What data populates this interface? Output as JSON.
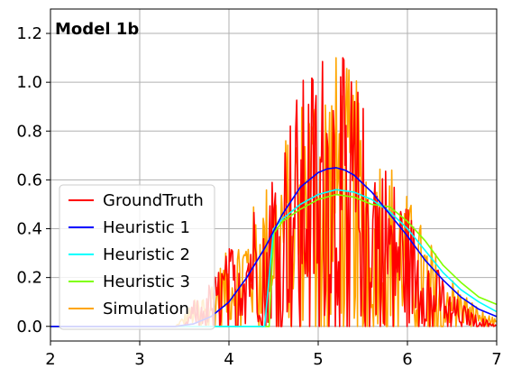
{
  "chart_data": {
    "type": "line",
    "title": "Model 1b",
    "xlabel": "",
    "ylabel": "",
    "xlim": [
      2,
      7
    ],
    "ylim": [
      -0.06,
      1.3
    ],
    "grid": true,
    "legend_position": "lower-left",
    "x_ticks": [
      "2",
      "3",
      "4",
      "5",
      "6",
      "7"
    ],
    "y_ticks": [
      "0.0",
      "0.2",
      "0.4",
      "0.6",
      "0.8",
      "1.0",
      "1.2"
    ],
    "series": [
      {
        "name": "GroundTruth",
        "color": "#ff0000",
        "style": "noisy",
        "x": [
          2.0,
          3.5,
          3.6,
          3.7,
          3.8,
          3.9,
          4.0,
          4.1,
          4.2,
          4.3,
          4.4,
          4.5,
          4.6,
          4.7,
          4.8,
          4.9,
          5.0,
          5.1,
          5.2,
          5.3,
          5.4,
          5.5,
          5.6,
          5.7,
          5.8,
          5.9,
          6.0,
          6.1,
          6.2,
          6.3,
          6.4,
          6.5,
          6.6,
          6.7,
          6.8,
          6.9,
          7.0
        ],
        "y": [
          0.0,
          0.0,
          0.08,
          0.1,
          0.15,
          0.2,
          0.25,
          0.3,
          0.35,
          0.42,
          0.48,
          0.55,
          0.62,
          0.7,
          0.78,
          0.82,
          0.88,
          0.92,
          0.9,
          0.86,
          0.8,
          0.72,
          0.65,
          0.58,
          0.5,
          0.45,
          0.4,
          0.32,
          0.26,
          0.2,
          0.16,
          0.1,
          0.08,
          0.05,
          0.03,
          0.02,
          0.01
        ]
      },
      {
        "name": "Heuristic 1",
        "color": "#0000ff",
        "style": "smooth",
        "x": [
          2.0,
          3.4,
          3.6,
          3.8,
          4.0,
          4.2,
          4.4,
          4.6,
          4.8,
          5.0,
          5.1,
          5.2,
          5.3,
          5.4,
          5.6,
          5.8,
          6.0,
          6.2,
          6.4,
          6.6,
          6.8,
          7.0
        ],
        "y": [
          0.0,
          0.0,
          0.01,
          0.04,
          0.1,
          0.2,
          0.32,
          0.46,
          0.57,
          0.63,
          0.645,
          0.65,
          0.64,
          0.62,
          0.55,
          0.46,
          0.37,
          0.27,
          0.19,
          0.12,
          0.07,
          0.04
        ]
      },
      {
        "name": "Heuristic 2",
        "color": "#00ffff",
        "style": "smooth",
        "x": [
          2.0,
          4.4,
          4.5,
          4.6,
          4.8,
          5.0,
          5.2,
          5.4,
          5.6,
          5.8,
          6.0,
          6.2,
          6.4,
          6.6,
          6.8,
          7.0
        ],
        "y": [
          0.0,
          0.0,
          0.4,
          0.44,
          0.5,
          0.54,
          0.56,
          0.55,
          0.52,
          0.47,
          0.4,
          0.31,
          0.22,
          0.15,
          0.1,
          0.06
        ]
      },
      {
        "name": "Heuristic 3",
        "color": "#7fff00",
        "style": "smooth",
        "x": [
          2.0,
          4.45,
          4.5,
          4.6,
          4.8,
          5.0,
          5.2,
          5.4,
          5.6,
          5.8,
          6.0,
          6.2,
          6.4,
          6.6,
          6.8,
          7.0
        ],
        "y": [
          0.0,
          0.0,
          0.38,
          0.43,
          0.48,
          0.52,
          0.54,
          0.53,
          0.5,
          0.49,
          0.43,
          0.35,
          0.25,
          0.18,
          0.12,
          0.09
        ]
      },
      {
        "name": "Simulation",
        "color": "#ffa500",
        "style": "noisy",
        "x": [
          2.0,
          3.4,
          3.6,
          3.8,
          4.0,
          4.2,
          4.4,
          4.6,
          4.8,
          5.0,
          5.2,
          5.4,
          5.6,
          5.8,
          6.0,
          6.2,
          6.4,
          6.6,
          6.8,
          7.0
        ],
        "y": [
          0.0,
          0.0,
          0.08,
          0.15,
          0.25,
          0.35,
          0.45,
          0.6,
          0.75,
          0.85,
          0.88,
          0.8,
          0.65,
          0.55,
          0.42,
          0.3,
          0.2,
          0.12,
          0.06,
          0.02
        ]
      }
    ]
  }
}
